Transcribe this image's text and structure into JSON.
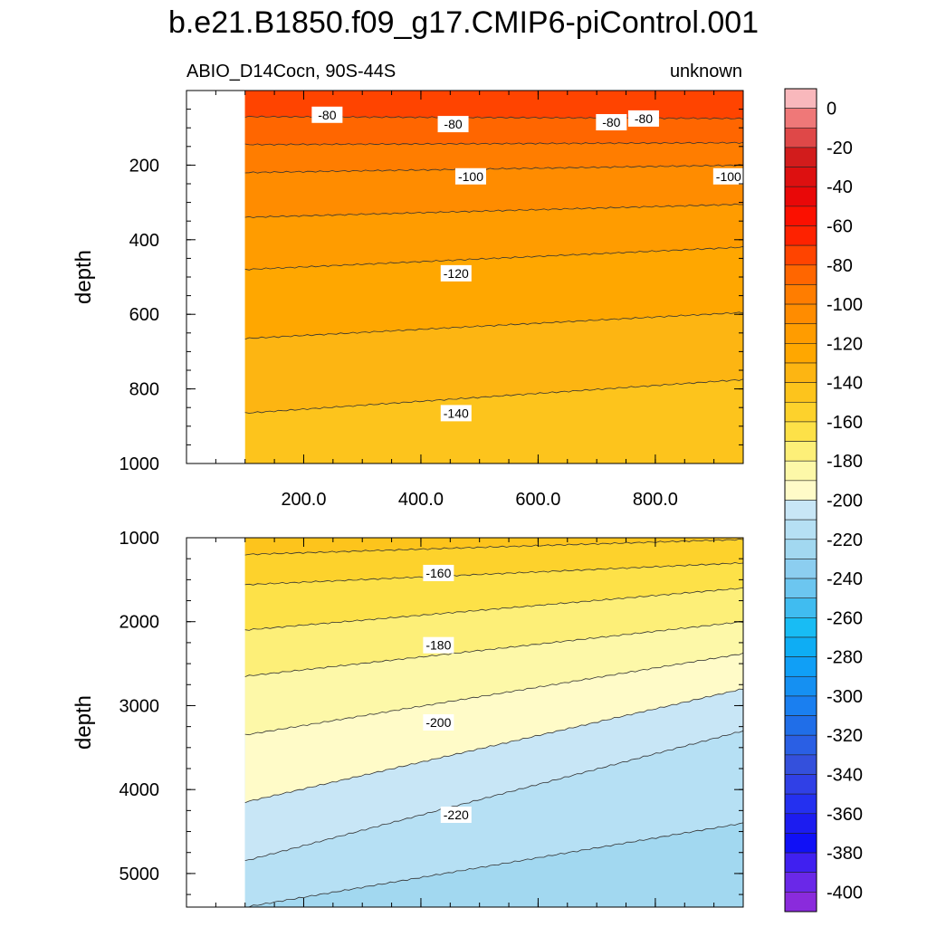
{
  "title": "b.e21.B1850.f09_g17.CMIP6-piControl.001",
  "subtitle_left": "ABIO_D14Cocn, 90S-44S",
  "subtitle_right": "unknown",
  "chart_data": [
    {
      "type": "contour",
      "panel": "upper",
      "xlabel": "",
      "ylabel": "depth",
      "xlim": [
        0,
        950
      ],
      "ylim": [
        1000,
        0
      ],
      "x_ticks": [
        200,
        400,
        600,
        800
      ],
      "x_tick_labels": [
        "200.0",
        "400.0",
        "600.0",
        "800.0"
      ],
      "y_ticks": [
        200,
        400,
        600,
        800,
        1000
      ],
      "y_tick_labels": [
        "200",
        "400",
        "600",
        "800",
        "1000"
      ],
      "data_x_range": [
        100,
        950
      ],
      "contours": [
        {
          "level": -80,
          "depth_at_x": [
            [
              100,
              70
            ],
            [
              950,
              75
            ]
          ]
        },
        {
          "level": -90,
          "depth_at_x": [
            [
              100,
              145
            ],
            [
              950,
              140
            ]
          ]
        },
        {
          "level": -100,
          "depth_at_x": [
            [
              100,
              220
            ],
            [
              950,
              200
            ]
          ]
        },
        {
          "level": -110,
          "depth_at_x": [
            [
              100,
              340
            ],
            [
              950,
              305
            ]
          ]
        },
        {
          "level": -120,
          "depth_at_x": [
            [
              100,
              480
            ],
            [
              950,
              420
            ]
          ]
        },
        {
          "level": -130,
          "depth_at_x": [
            [
              100,
              665
            ],
            [
              950,
              595
            ]
          ]
        },
        {
          "level": -140,
          "depth_at_x": [
            [
              100,
              865
            ],
            [
              950,
              775
            ]
          ]
        }
      ],
      "contour_labels": [
        {
          "text": "-80",
          "x": 240,
          "depth": 65
        },
        {
          "text": "-80",
          "x": 455,
          "depth": 90
        },
        {
          "text": "-80",
          "x": 725,
          "depth": 85
        },
        {
          "text": "-80",
          "x": 780,
          "depth": 75
        },
        {
          "text": "-100",
          "x": 485,
          "depth": 230
        },
        {
          "text": "-100",
          "x": 925,
          "depth": 230
        },
        {
          "text": "-120",
          "x": 460,
          "depth": 490
        },
        {
          "text": "-140",
          "x": 460,
          "depth": 865
        }
      ]
    },
    {
      "type": "contour",
      "panel": "lower",
      "xlabel": "",
      "ylabel": "depth",
      "xlim": [
        0,
        950
      ],
      "ylim": [
        5400,
        1000
      ],
      "y_ticks": [
        1000,
        2000,
        3000,
        4000,
        5000
      ],
      "y_tick_labels": [
        "1000",
        "2000",
        "3000",
        "4000",
        "5000"
      ],
      "data_x_range": [
        100,
        950
      ],
      "contours": [
        {
          "level": -150,
          "depth_at_x": [
            [
              100,
              1200
            ],
            [
              950,
              1020
            ]
          ]
        },
        {
          "level": -160,
          "depth_at_x": [
            [
              100,
              1560
            ],
            [
              950,
              1300
            ]
          ]
        },
        {
          "level": -170,
          "depth_at_x": [
            [
              100,
              2100
            ],
            [
              950,
              1600
            ]
          ]
        },
        {
          "level": -180,
          "depth_at_x": [
            [
              100,
              2650
            ],
            [
              950,
              2000
            ]
          ]
        },
        {
          "level": -190,
          "depth_at_x": [
            [
              100,
              3350
            ],
            [
              950,
              2380
            ]
          ]
        },
        {
          "level": -200,
          "depth_at_x": [
            [
              100,
              4150
            ],
            [
              950,
              2800
            ]
          ]
        },
        {
          "level": -210,
          "depth_at_x": [
            [
              100,
              4850
            ],
            [
              950,
              3300
            ]
          ]
        },
        {
          "level": -220,
          "depth_at_x": [
            [
              100,
              5400
            ],
            [
              950,
              4400
            ]
          ]
        }
      ],
      "contour_labels": [
        {
          "text": "-160",
          "x": 430,
          "depth": 1420
        },
        {
          "text": "-180",
          "x": 430,
          "depth": 2280
        },
        {
          "text": "-200",
          "x": 430,
          "depth": 3200
        },
        {
          "text": "-220",
          "x": 460,
          "depth": 4300
        }
      ]
    }
  ],
  "colorbar": {
    "labels": [
      "0",
      "-20",
      "-40",
      "-60",
      "-80",
      "-100",
      "-120",
      "-140",
      "-160",
      "-180",
      "-200",
      "-220",
      "-240",
      "-260",
      "-280",
      "-300",
      "-320",
      "-340",
      "-360",
      "-380",
      "-400"
    ],
    "colors": [
      "#f9b8bc",
      "#ef7878",
      "#df4848",
      "#d21c1c",
      "#dd1010",
      "#e90808",
      "#fb1000",
      "#fe2200",
      "#ff4400",
      "#ff6600",
      "#ff7d00",
      "#ff8c00",
      "#ff9c00",
      "#ffa700",
      "#fdb512",
      "#fdc41c",
      "#fdd22c",
      "#fde148",
      "#fdef78",
      "#fdf8a8",
      "#fffbc8",
      "#c8e6f6",
      "#b6e0f4",
      "#a2d8f0",
      "#8ccef0",
      "#6cc6f0",
      "#40bcf0",
      "#18bcf4",
      "#0eadf4",
      "#109ff6",
      "#1590f2",
      "#1a7ff0",
      "#206ee8",
      "#2a5fe4",
      "#3450dc",
      "#3040e6",
      "#2430f0",
      "#1c1cf0",
      "#1010f6",
      "#4020f0",
      "#6a28e8",
      "#8a2bdc"
    ]
  }
}
